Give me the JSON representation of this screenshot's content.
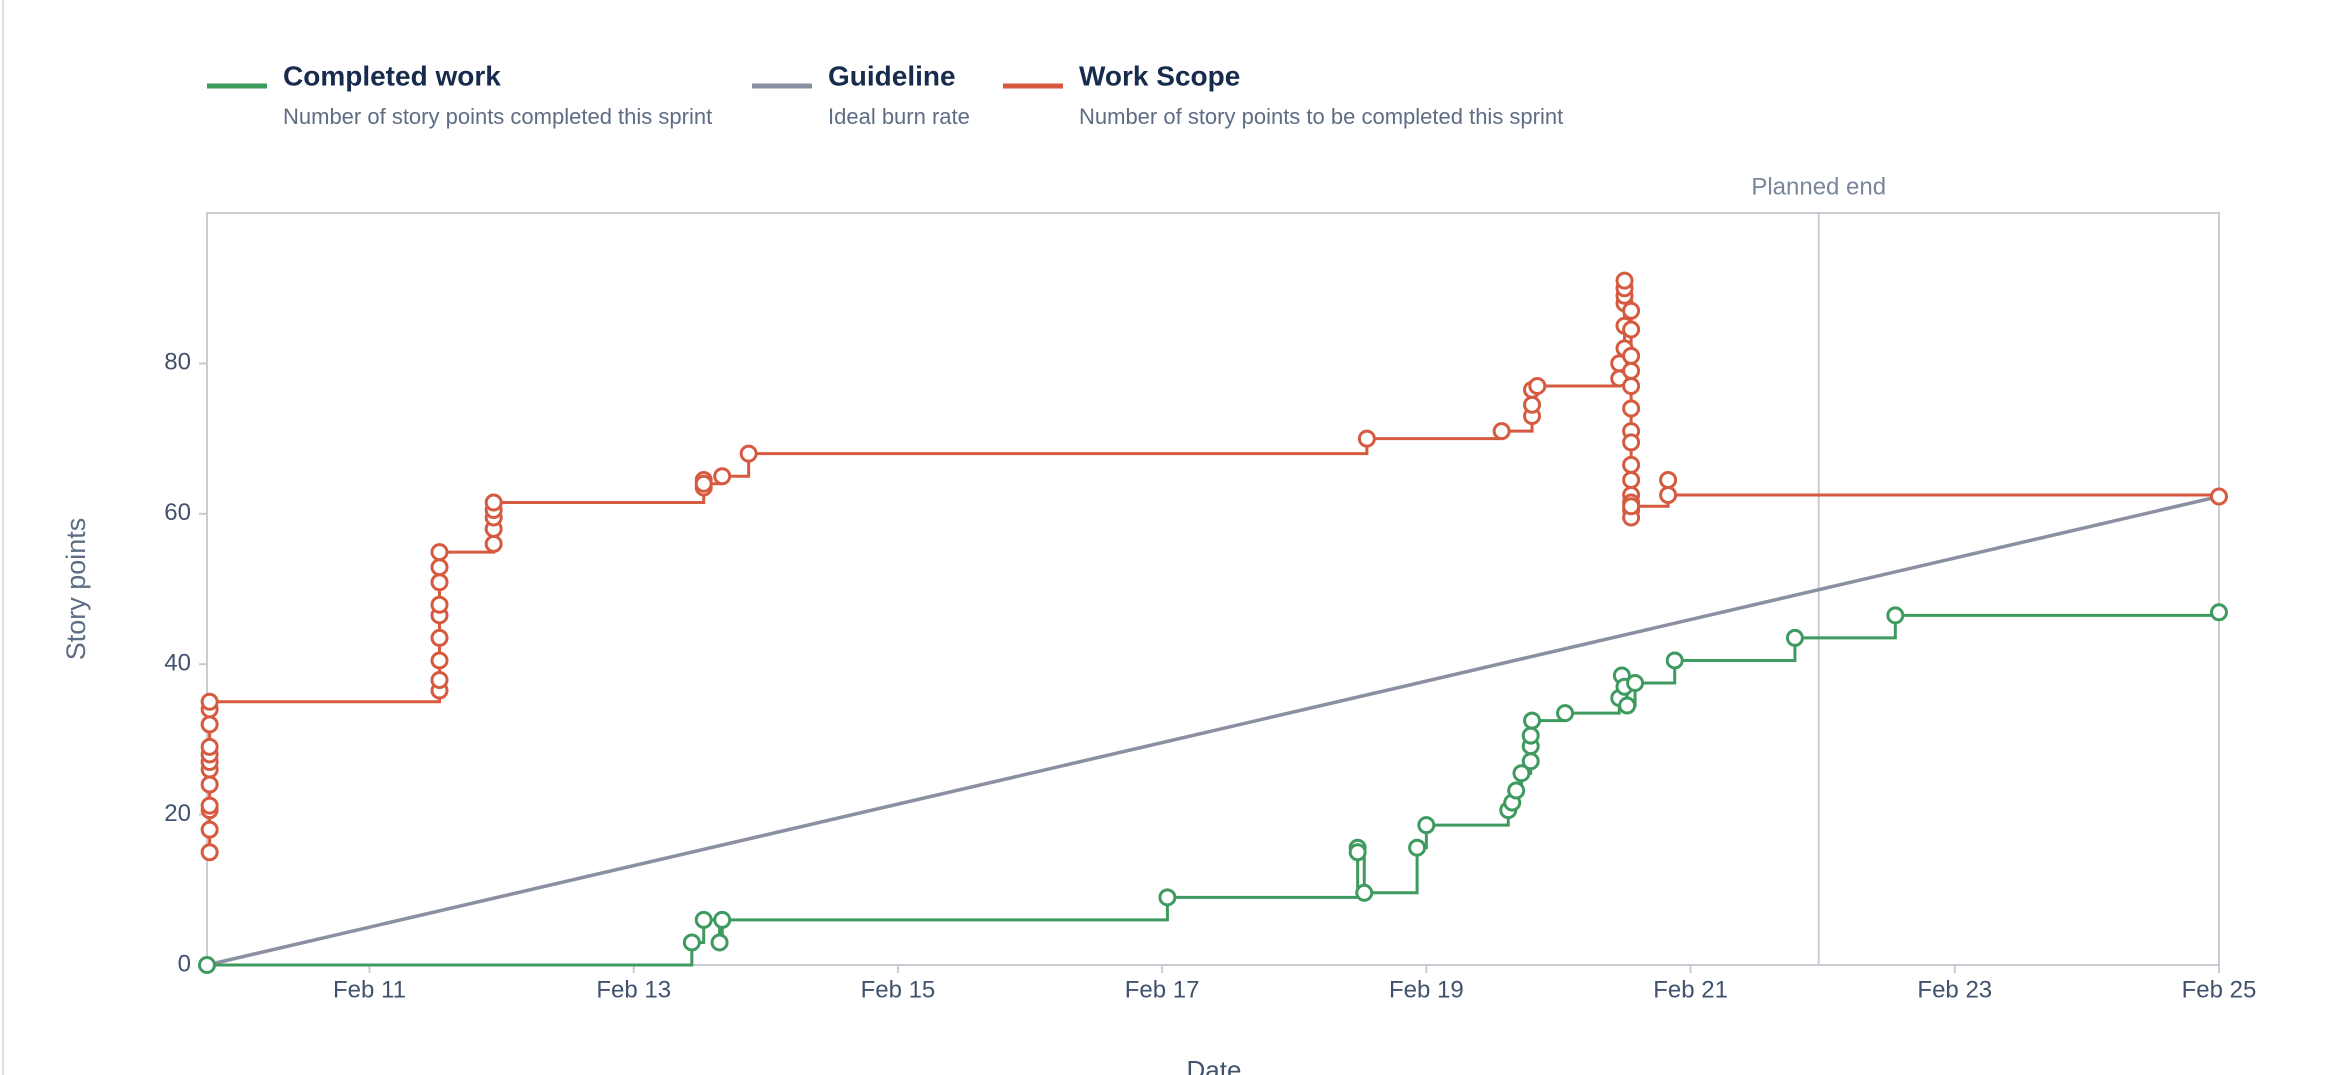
{
  "chart_data": {
    "type": "step-line",
    "x_label": "Date",
    "y_label": "Story points",
    "xlim": [
      9.77,
      25
    ],
    "ylim": [
      0,
      100
    ],
    "xticks": [
      {
        "value": 11,
        "label": "Feb 11"
      },
      {
        "value": 13,
        "label": "Feb 13"
      },
      {
        "value": 15,
        "label": "Feb 15"
      },
      {
        "value": 17,
        "label": "Feb 17"
      },
      {
        "value": 19,
        "label": "Feb 19"
      },
      {
        "value": 21,
        "label": "Feb 21"
      },
      {
        "value": 23,
        "label": "Feb 23"
      },
      {
        "value": 25,
        "label": "Feb 25"
      }
    ],
    "yticks": [
      0,
      20,
      40,
      60,
      80
    ],
    "planned_end": {
      "x": 21.97,
      "label": "Planned end"
    },
    "series": [
      {
        "name": "Completed work",
        "description": "Number of story points completed this sprint",
        "color": "#3f9a5f",
        "x": [
          9.77,
          13.44,
          13.53,
          13.65,
          13.67,
          17.04,
          18.48,
          18.48,
          18.53,
          18.93,
          19.0,
          19.62,
          19.65,
          19.68,
          19.72,
          19.79,
          19.79,
          19.79,
          19.8,
          20.05,
          20.46,
          20.48,
          20.5,
          20.52,
          20.58,
          20.88,
          21.79,
          22.55,
          25
        ],
        "values": [
          0,
          3,
          6,
          3,
          6,
          9,
          15.6,
          15,
          9.6,
          15.6,
          18.6,
          20.6,
          21.6,
          23.2,
          25.5,
          27.1,
          29.1,
          30.5,
          32.5,
          33.5,
          35.5,
          38.5,
          37,
          34.5,
          37.5,
          40.5,
          43.5,
          46.5,
          46.9
        ]
      },
      {
        "name": "Guideline",
        "description": "Ideal burn rate",
        "color": "#8a8fa2",
        "x": [
          9.77,
          25
        ],
        "values": [
          0,
          62.3
        ]
      },
      {
        "name": "Work Scope",
        "description": "Number of story points to be completed this sprint",
        "color": "#d65a3f",
        "x": [
          9.79,
          9.79,
          9.79,
          9.79,
          9.79,
          9.79,
          9.79,
          9.79,
          9.79,
          9.79,
          9.79,
          9.79,
          11.53,
          11.53,
          11.53,
          11.53,
          11.53,
          11.53,
          11.53,
          11.53,
          11.53,
          11.94,
          11.94,
          11.94,
          11.94,
          11.94,
          13.53,
          13.53,
          13.53,
          13.67,
          13.87,
          18.55,
          19.57,
          19.8,
          19.8,
          19.8,
          19.84,
          20.46,
          20.46,
          20.5,
          20.5,
          20.5,
          20.5,
          20.5,
          20.5,
          20.55,
          20.55,
          20.55,
          20.55,
          20.55,
          20.55,
          20.55,
          20.55,
          20.55,
          20.55,
          20.55,
          20.55,
          20.55,
          20.55,
          20.55,
          20.83,
          20.83,
          25
        ],
        "values": [
          15,
          18,
          20.6,
          21.2,
          24,
          26,
          27,
          28,
          29,
          32,
          34,
          35,
          36.5,
          37.9,
          40.5,
          43.5,
          46.5,
          47.9,
          50.9,
          52.9,
          54.9,
          56,
          58,
          59.5,
          60.5,
          61.5,
          63.5,
          64.5,
          64,
          65,
          68,
          70,
          71,
          73,
          74.5,
          76.5,
          77,
          78,
          80,
          82,
          85,
          88,
          89,
          90,
          91,
          87,
          84.5,
          81,
          79,
          77,
          74,
          71,
          69.5,
          66.5,
          64.5,
          62.5,
          61.5,
          60.5,
          59.5,
          61,
          64.5,
          62.5,
          62.3
        ]
      }
    ]
  }
}
